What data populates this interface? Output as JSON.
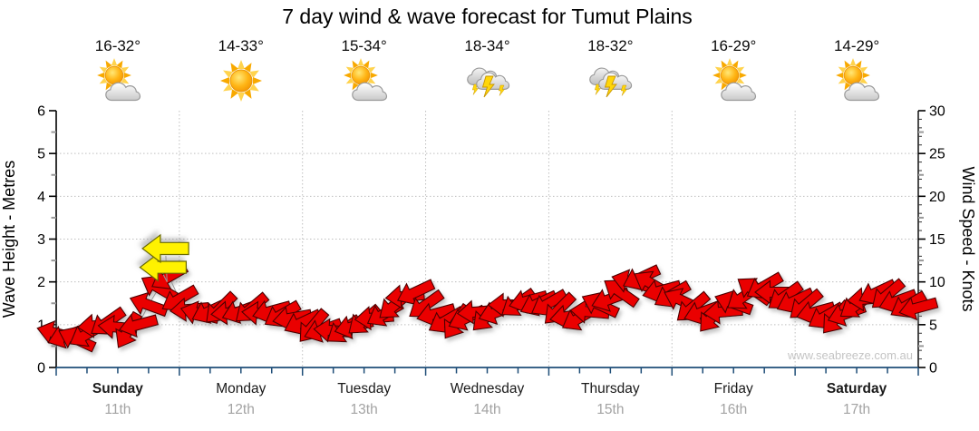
{
  "title": "7 day wind & wave forecast for Tumut Plains",
  "watermark": "www.seabreeze.com.au",
  "days": [
    {
      "name": "Sunday",
      "date": "11th",
      "temp": "16-32°",
      "icon": "sun-cloud",
      "weekend": true
    },
    {
      "name": "Monday",
      "date": "12th",
      "temp": "14-33°",
      "icon": "sunny",
      "weekend": false
    },
    {
      "name": "Tuesday",
      "date": "13th",
      "temp": "15-34°",
      "icon": "sun-cloud",
      "weekend": false
    },
    {
      "name": "Wednesday",
      "date": "14th",
      "temp": "18-34°",
      "icon": "storm",
      "weekend": false
    },
    {
      "name": "Thursday",
      "date": "15th",
      "temp": "18-32°",
      "icon": "storm",
      "weekend": false
    },
    {
      "name": "Friday",
      "date": "16th",
      "temp": "16-29°",
      "icon": "sun-cloud",
      "weekend": false
    },
    {
      "name": "Saturday",
      "date": "17th",
      "temp": "14-29°",
      "icon": "sun-cloud",
      "weekend": true
    }
  ],
  "chart_data": {
    "type": "line",
    "title": "7 day wind & wave forecast for Tumut Plains",
    "left_axis": {
      "label": "Wave Height - Metres",
      "min": 0,
      "max": 6,
      "ticks": [
        0,
        1,
        2,
        3,
        4,
        5,
        6
      ]
    },
    "right_axis": {
      "label": "Wind Speed - Knots",
      "min": 0,
      "max": 30,
      "ticks": [
        0,
        5,
        10,
        15,
        20,
        25,
        30
      ]
    },
    "x_axis": {
      "ticks_per_day": 4,
      "grid_at_day_boundaries": true
    },
    "samples_per_day": 12,
    "interval_hours": 2,
    "series": [
      {
        "name": "wind-speed-knots",
        "knots": [
          4.0,
          3.7,
          3.3,
          3.9,
          4.9,
          5.3,
          4.7,
          4.3,
          5.0,
          7.3,
          9.3,
          10.6,
          8.0,
          6.8,
          6.3,
          6.6,
          6.9,
          6.4,
          6.6,
          6.9,
          6.3,
          6.6,
          6.2,
          5.8,
          5.3,
          4.8,
          4.4,
          4.3,
          4.4,
          4.8,
          5.5,
          5.8,
          6.3,
          7.3,
          8.3,
          8.8,
          7.3,
          6.3,
          5.5,
          5.3,
          5.8,
          6.5,
          6.0,
          6.5,
          7.3,
          7.5,
          7.8,
          7.5,
          7.5,
          6.8,
          6.0,
          5.8,
          6.5,
          7.3,
          8.0,
          8.8,
          10.0,
          10.5,
          9.8,
          9.0,
          8.5,
          7.8,
          7.0,
          6.5,
          6.0,
          6.5,
          7.5,
          8.3,
          9.0,
          9.5,
          8.8,
          8.3,
          7.8,
          7.3,
          6.5,
          6.0,
          5.8,
          6.3,
          7.3,
          8.0,
          8.8,
          8.5,
          7.8,
          7.3,
          7.0
        ],
        "dir_deg": [
          195,
          160,
          205,
          150,
          175,
          145,
          185,
          120,
          165,
          200,
          210,
          150,
          150,
          175,
          195,
          155,
          135,
          175,
          160,
          140,
          185,
          165,
          150,
          170,
          155,
          130,
          160,
          185,
          145,
          165,
          140,
          175,
          150,
          140,
          175,
          155,
          145,
          165,
          150,
          125,
          155,
          175,
          135,
          160,
          180,
          145,
          165,
          155,
          150,
          135,
          170,
          150,
          185,
          205,
          160,
          215,
          195,
          155,
          210,
          165,
          150,
          205,
          140,
          160,
          130,
          175,
          200,
          145,
          215,
          150,
          180,
          145,
          155,
          140,
          165,
          150,
          130,
          160,
          145,
          175,
          155,
          140,
          160,
          150,
          165
        ]
      }
    ],
    "gusts": [
      {
        "day": 0.87,
        "knots": 11.7,
        "dir_deg": 180
      },
      {
        "day": 0.89,
        "knots": 13.9,
        "dir_deg": 180
      }
    ],
    "colors": {
      "arrow_fill": "#EA0000",
      "arrow_stroke": "#4d0000",
      "gust_fill": "#FFF200",
      "gust_stroke": "#6b6b00",
      "series_line": "#9b9b9b",
      "grid": "#bfbfbf",
      "axis": "#000000",
      "x_axis_line": "#1F4E78",
      "minor_tick": "#999999",
      "day_label": "#1a1a1a",
      "date_label": "#a3a3a3",
      "watermark": "#c4c4c4"
    }
  }
}
